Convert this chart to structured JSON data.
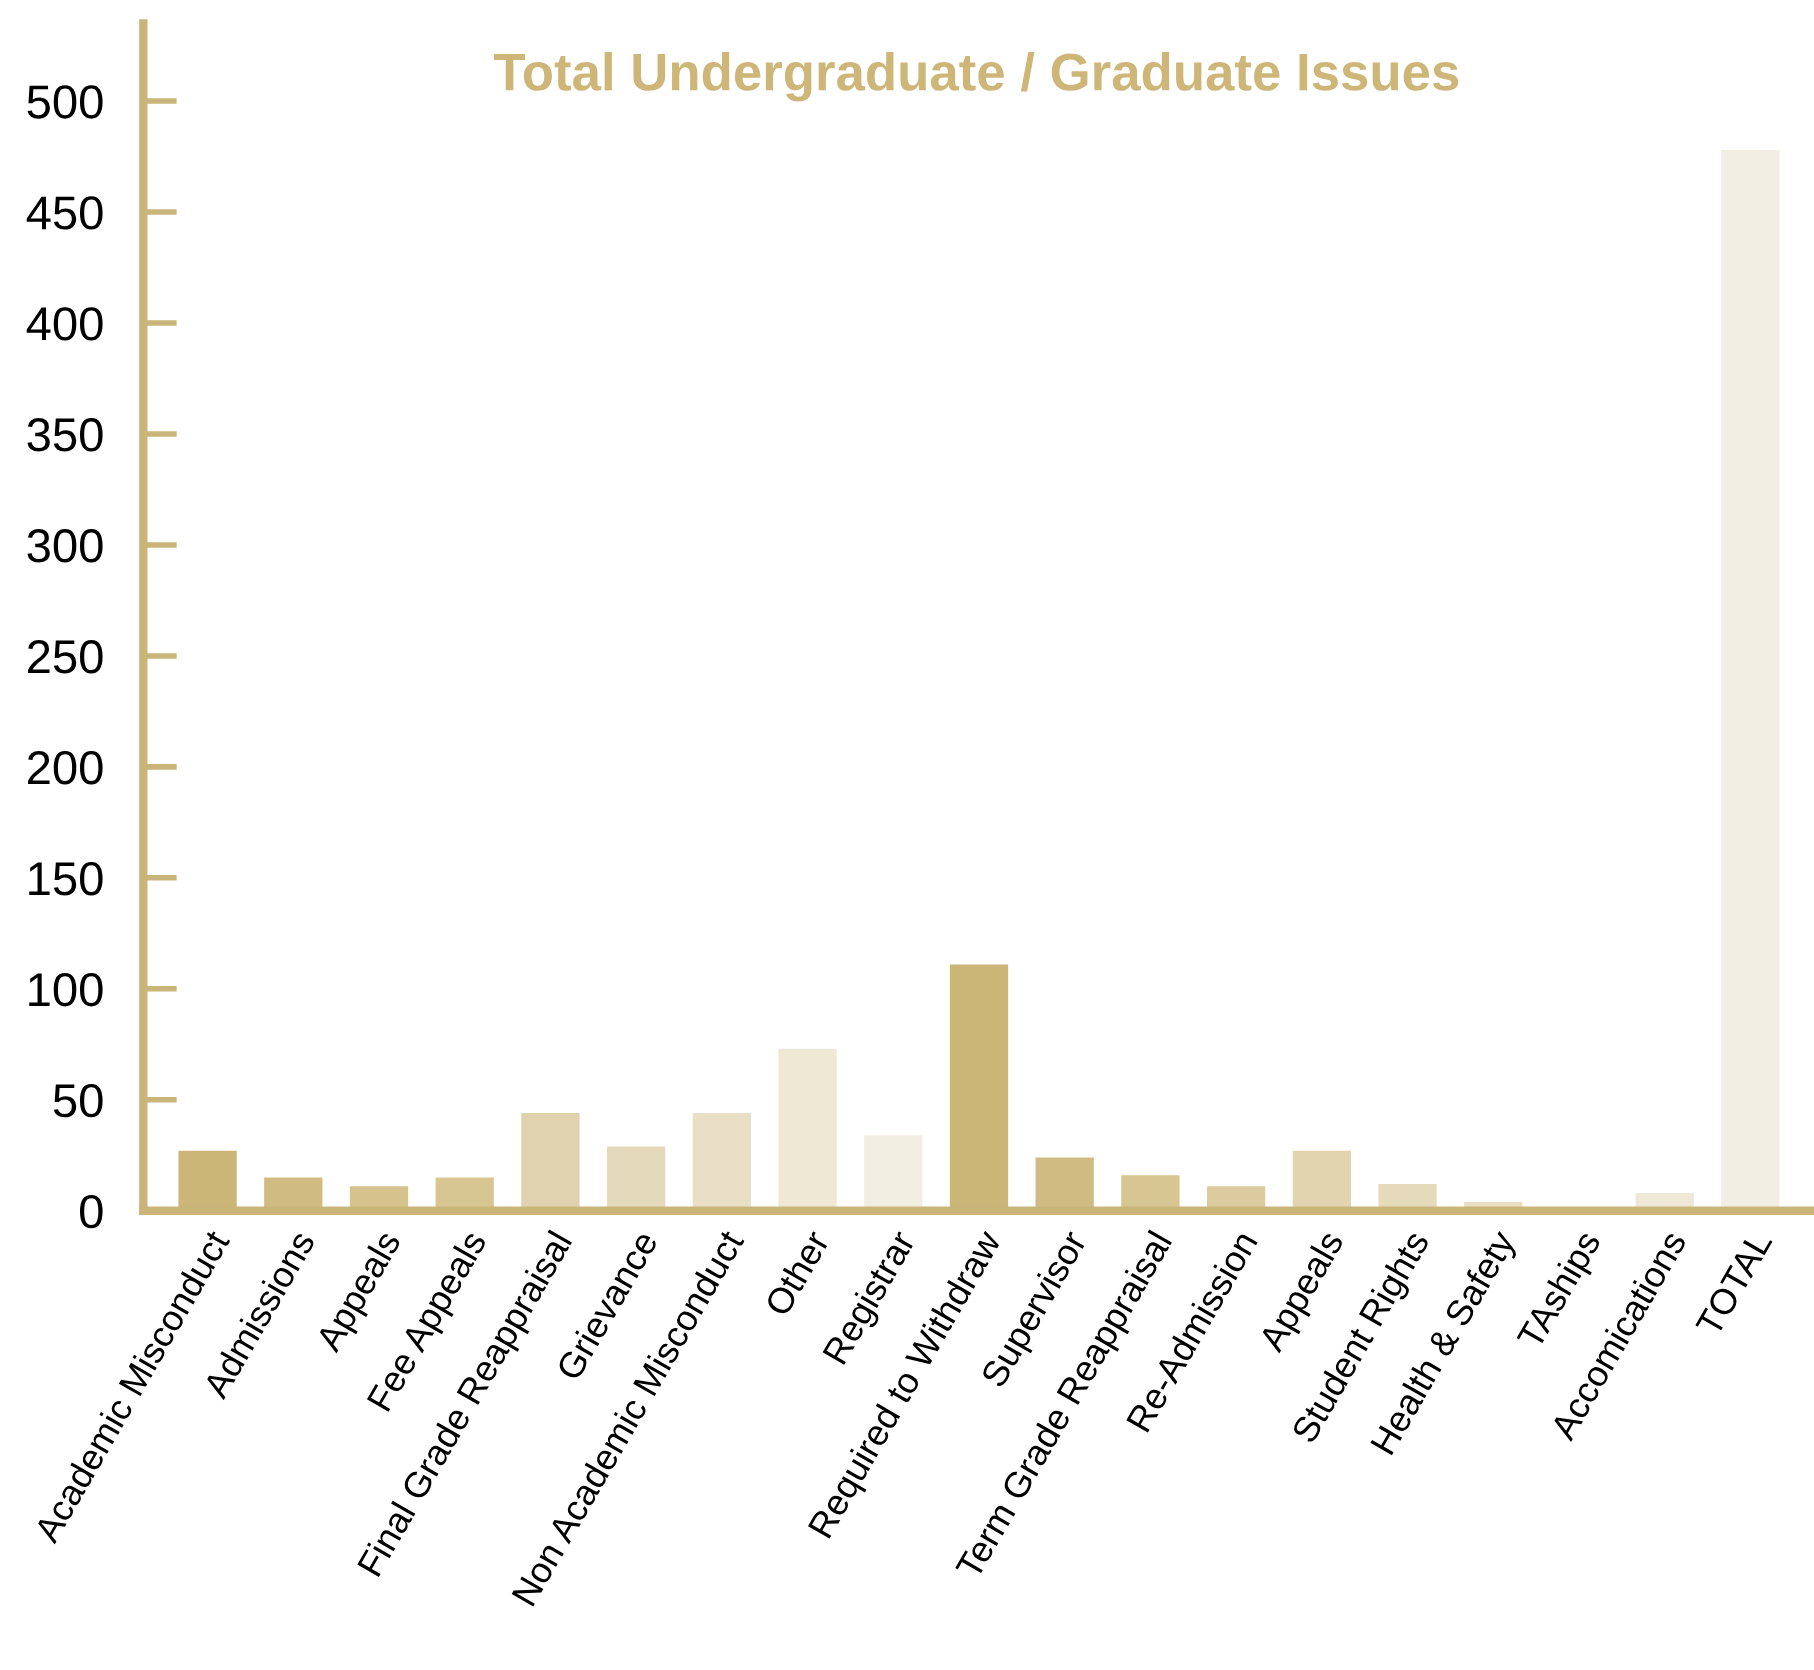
{
  "chart_data": {
    "type": "bar",
    "title": "Total Undergraduate / Graduate Issues",
    "categories": [
      "Academic Misconduct",
      "Admissions",
      "Appeals",
      "Fee Appeals",
      "Final Grade Reappraisal",
      "Grievance",
      "Non Academic Misconduct",
      "Other",
      "Registrar",
      "Required to Withdraw",
      "Supervisor",
      "Term Grade Reappraisal",
      "Re-Admission",
      "Appeals",
      "Student Rights",
      "Health & Safety",
      "TAships",
      "Accomications",
      "TOTAL"
    ],
    "values": [
      27,
      15,
      11,
      15,
      44,
      29,
      44,
      73,
      34,
      111,
      24,
      16,
      11,
      27,
      12,
      4,
      0,
      8,
      478
    ],
    "colors": [
      "#cbb577",
      "#d0bb82",
      "#d5c28c",
      "#d8c692",
      "#e0d2ae",
      "#e4d9ba",
      "#e8dfc6",
      "#efe8d5",
      "#f3eee2",
      "#cbb577",
      "#d0bc83",
      "#d7c592",
      "#dccb9e",
      "#e1d4ae",
      "#e5dbbb",
      "#e8dfc5",
      "#ece4cf",
      "#efe8d6",
      "#f3eee3"
    ],
    "ylim": [
      0,
      535
    ],
    "yticks": [
      0,
      50,
      100,
      150,
      200,
      250,
      300,
      350,
      400,
      450,
      500
    ],
    "grid": false,
    "legend": false
  }
}
